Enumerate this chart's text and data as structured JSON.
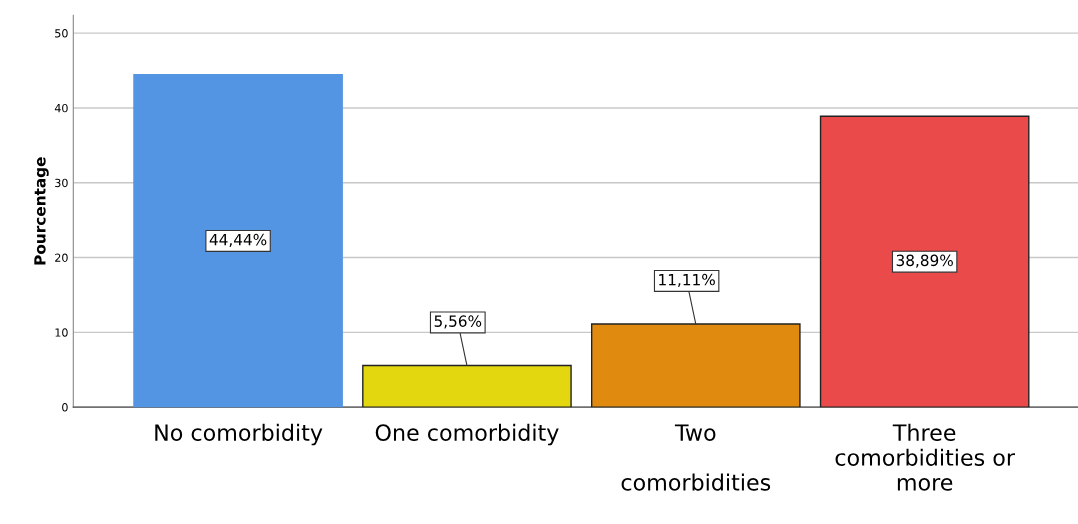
{
  "chart_data": {
    "type": "bar",
    "ylabel": "Pourcentage",
    "categories": [
      "No comorbidity",
      "One comorbidity",
      "Two\n\ncomorbidities",
      "Three\ncomorbidities or\nmore"
    ],
    "values": [
      44.44,
      5.56,
      11.11,
      38.89
    ],
    "colors": [
      "#5495e3",
      "#e3d70f",
      "#e08a10",
      "#ea4a4a"
    ],
    "value_labels": [
      "44,44%",
      "5,56%",
      "11,11%",
      "38,89%"
    ],
    "ylim": [
      0,
      52.4
    ],
    "yticks": [
      0,
      10,
      20,
      30,
      40,
      50
    ],
    "grid": "y"
  }
}
